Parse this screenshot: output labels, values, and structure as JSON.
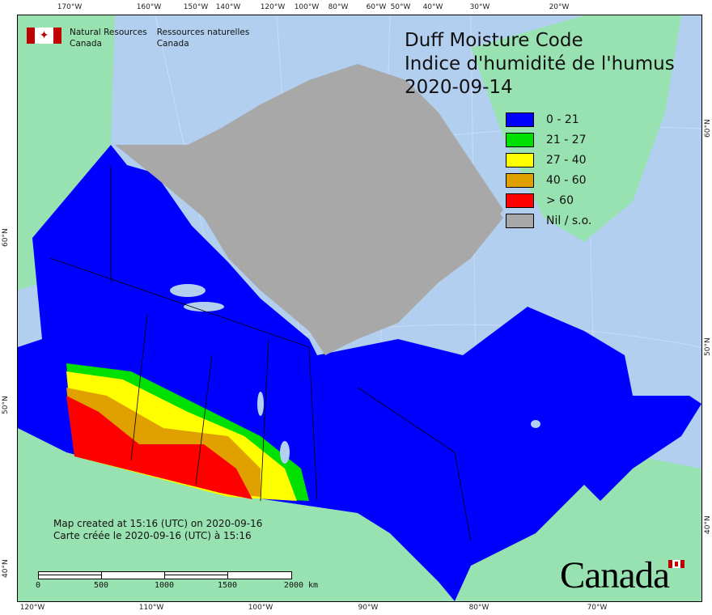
{
  "title": {
    "line1": "Duff Moisture Code",
    "line2": "Indice d'humidité de l'humus",
    "date": "2020-09-14"
  },
  "agency": {
    "en_line1": "Natural Resources",
    "en_line2": "Canada",
    "fr_line1": "Ressources naturelles",
    "fr_line2": "Canada",
    "flag_icon": "canada-flag-icon"
  },
  "legend": [
    {
      "label": "0 - 21",
      "color": "#0000ff"
    },
    {
      "label": "21  - 27",
      "color": "#00e000"
    },
    {
      "label": "27 - 40",
      "color": "#ffff00"
    },
    {
      "label": "40 - 60",
      "color": "#e0a000"
    },
    {
      "label": "> 60",
      "color": "#ff0000"
    },
    {
      "label": "Nil / s.o.",
      "color": "#a8a8a8"
    }
  ],
  "created": {
    "en": "Map created at 15:16 (UTC) on 2020-09-16",
    "fr": "Carte créée le 2020-09-16 (UTC) à 15:16"
  },
  "scale_bar": {
    "labels": [
      "0",
      "500",
      "1000",
      "1500",
      "2000  km"
    ]
  },
  "axes": {
    "top": [
      "170°W",
      "160°W",
      "150°W",
      "140°W",
      "120°W",
      "100°W",
      "80°W",
      "60°W",
      "50°W",
      "40°W",
      "30°W",
      "20°W"
    ],
    "bottom": [
      "120°W",
      "110°W",
      "100°W",
      "90°W",
      "80°W",
      "70°W"
    ],
    "left": [
      "60°N",
      "50°N",
      "40°N"
    ],
    "right": [
      "60°N",
      "50°N",
      "40°N"
    ]
  },
  "wordmark": "Canada",
  "colors": {
    "ocean": "#b3cff0",
    "other_land": "#98e2b2",
    "no_data": "#a8a8a8"
  }
}
